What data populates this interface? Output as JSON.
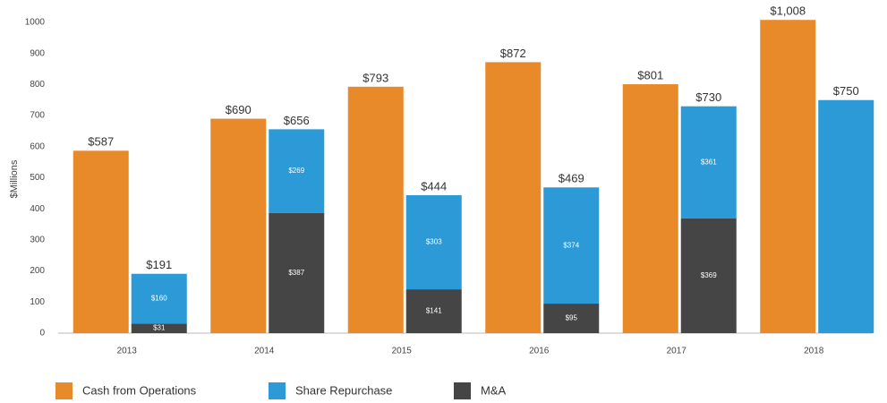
{
  "chart_data": {
    "type": "bar",
    "y_label": "$Millions",
    "categories": [
      "2013",
      "2014",
      "2015",
      "2016",
      "2017",
      "2018"
    ],
    "series": [
      {
        "name": "Cash from Operations",
        "color": "#e8892a",
        "values": [
          587,
          690,
          793,
          872,
          801,
          1008
        ],
        "value_labels": [
          "$587",
          "$690",
          "$793",
          "$872",
          "$801",
          "$1,008"
        ]
      },
      {
        "name": "Share Repurchase",
        "color": "#2b9ad6",
        "values": [
          160,
          269,
          303,
          374,
          361,
          750
        ],
        "value_labels": [
          "$160",
          "$269",
          "$303",
          "$374",
          "$361",
          null
        ]
      },
      {
        "name": "M&A",
        "color": "#454545",
        "values": [
          31,
          387,
          141,
          95,
          369,
          null
        ],
        "value_labels": [
          "$31",
          "$387",
          "$141",
          "$95",
          "$369",
          null
        ]
      }
    ],
    "stack_totals": {
      "values": [
        191,
        656,
        444,
        469,
        730,
        750
      ],
      "value_labels": [
        "$191",
        "$656",
        "$444",
        "$469",
        "$730",
        "$750"
      ]
    },
    "ylim": [
      0,
      1000
    ],
    "yticks": [
      0,
      100,
      200,
      300,
      400,
      500,
      600,
      700,
      800,
      900,
      1000
    ],
    "grid": false
  }
}
